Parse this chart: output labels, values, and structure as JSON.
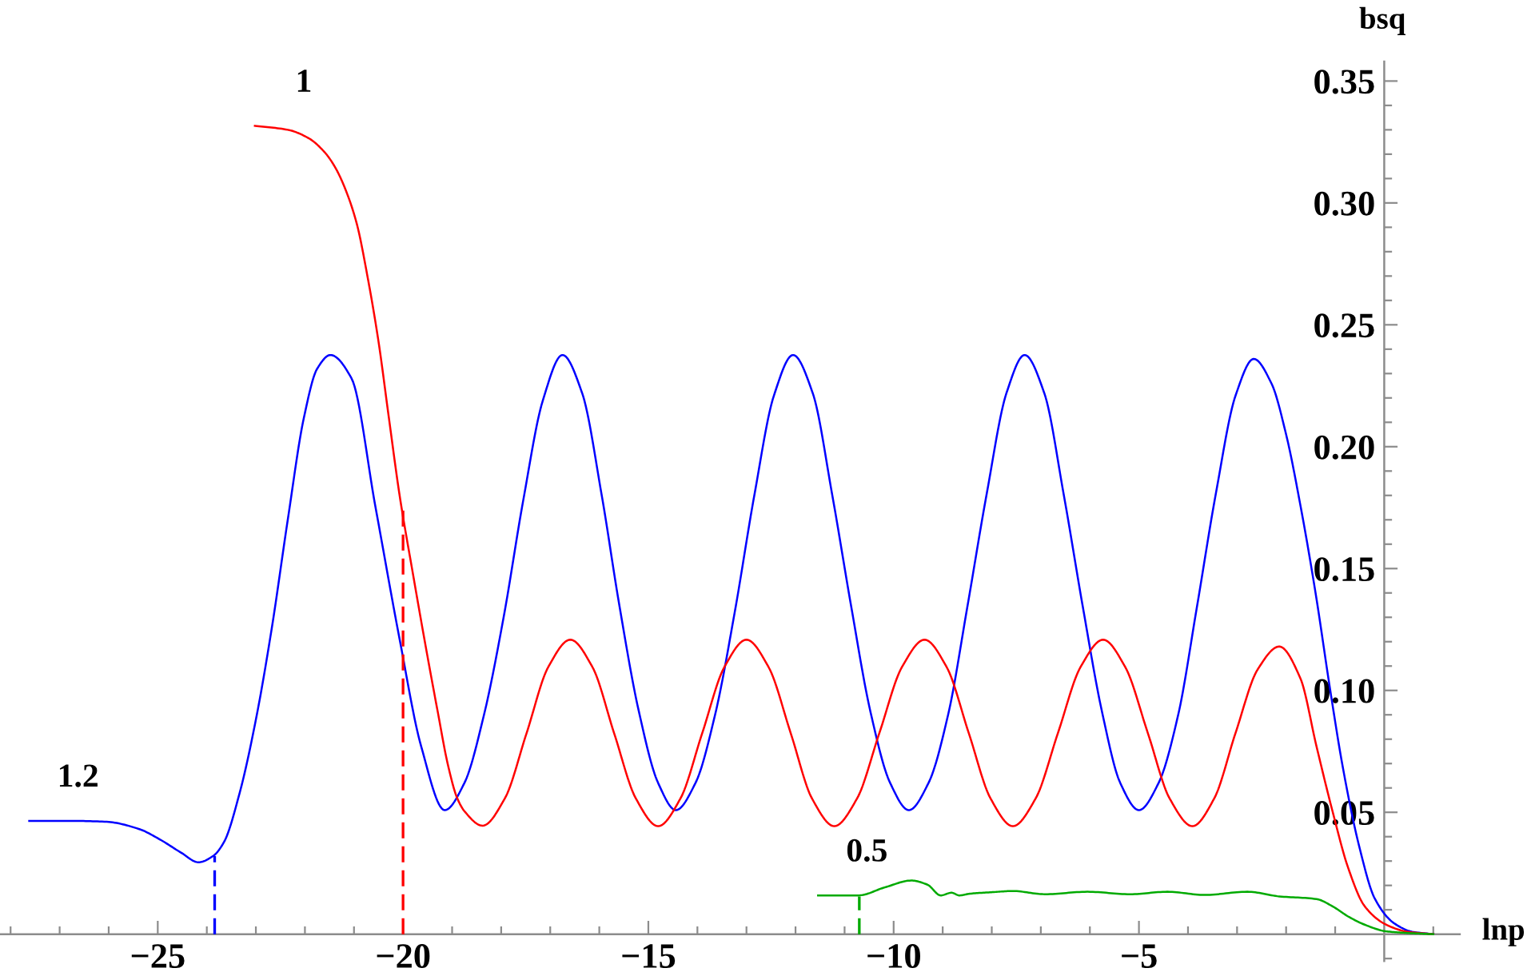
{
  "chart_data": {
    "type": "line",
    "xlabel": "lnp",
    "ylabel": "bsq",
    "xlim": [
      -28.2,
      1.54
    ],
    "ylim": [
      -0.011,
      0.358
    ],
    "xticks": [
      {
        "value": -28,
        "label": null
      },
      {
        "value": -27,
        "label": null
      },
      {
        "value": -26,
        "label": null
      },
      {
        "value": -25,
        "label": "−25"
      },
      {
        "value": -24,
        "label": null
      },
      {
        "value": -23,
        "label": null
      },
      {
        "value": -22,
        "label": null
      },
      {
        "value": -21,
        "label": null
      },
      {
        "value": -20,
        "label": "−20"
      },
      {
        "value": -19,
        "label": null
      },
      {
        "value": -18,
        "label": null
      },
      {
        "value": -17,
        "label": null
      },
      {
        "value": -16,
        "label": null
      },
      {
        "value": -15,
        "label": "−15"
      },
      {
        "value": -14,
        "label": null
      },
      {
        "value": -13,
        "label": null
      },
      {
        "value": -12,
        "label": null
      },
      {
        "value": -11,
        "label": null
      },
      {
        "value": -10,
        "label": "−10"
      },
      {
        "value": -9,
        "label": null
      },
      {
        "value": -8,
        "label": null
      },
      {
        "value": -7,
        "label": null
      },
      {
        "value": -6,
        "label": null
      },
      {
        "value": -5,
        "label": "−5"
      },
      {
        "value": -4,
        "label": null
      },
      {
        "value": -3,
        "label": null
      },
      {
        "value": -2,
        "label": null
      },
      {
        "value": -1,
        "label": null
      },
      {
        "value": 1,
        "label": null
      }
    ],
    "yticks": [
      {
        "value": -0.01,
        "label": null
      },
      {
        "value": 0.01,
        "label": null
      },
      {
        "value": 0.02,
        "label": null
      },
      {
        "value": 0.03,
        "label": null
      },
      {
        "value": 0.04,
        "label": null
      },
      {
        "value": 0.05,
        "label": "0.05"
      },
      {
        "value": 0.06,
        "label": null
      },
      {
        "value": 0.07,
        "label": null
      },
      {
        "value": 0.08,
        "label": null
      },
      {
        "value": 0.09,
        "label": null
      },
      {
        "value": 0.1,
        "label": "0.10"
      },
      {
        "value": 0.11,
        "label": null
      },
      {
        "value": 0.12,
        "label": null
      },
      {
        "value": 0.13,
        "label": null
      },
      {
        "value": 0.14,
        "label": null
      },
      {
        "value": 0.15,
        "label": "0.15"
      },
      {
        "value": 0.16,
        "label": null
      },
      {
        "value": 0.17,
        "label": null
      },
      {
        "value": 0.18,
        "label": null
      },
      {
        "value": 0.19,
        "label": null
      },
      {
        "value": 0.2,
        "label": "0.20"
      },
      {
        "value": 0.21,
        "label": null
      },
      {
        "value": 0.22,
        "label": null
      },
      {
        "value": 0.23,
        "label": null
      },
      {
        "value": 0.24,
        "label": null
      },
      {
        "value": 0.25,
        "label": "0.25"
      },
      {
        "value": 0.26,
        "label": null
      },
      {
        "value": 0.27,
        "label": null
      },
      {
        "value": 0.28,
        "label": null
      },
      {
        "value": 0.29,
        "label": null
      },
      {
        "value": 0.3,
        "label": "0.30"
      },
      {
        "value": 0.31,
        "label": null
      },
      {
        "value": 0.32,
        "label": null
      },
      {
        "value": 0.33,
        "label": null
      },
      {
        "value": 0.34,
        "label": null
      },
      {
        "value": 0.35,
        "label": "0.35"
      }
    ],
    "series": [
      {
        "name": "1.2",
        "color": "#0000ff",
        "x": [
          -27.62,
          -26.8,
          -26.04,
          -25.39,
          -24.96,
          -24.52,
          -24.17,
          -23.87,
          -23.65,
          -23.33,
          -23.0,
          -22.68,
          -22.35,
          -22.02,
          -21.75,
          -21.48,
          -21.05,
          -20.56,
          -20.07,
          -19.63,
          -19.15,
          -18.75,
          -18.35,
          -17.95,
          -17.55,
          -17.15,
          -16.75,
          -16.35,
          -15.95,
          -15.6,
          -15.2,
          -14.8,
          -14.44,
          -14.04,
          -13.64,
          -13.24,
          -12.84,
          -12.44,
          -12.05,
          -11.65,
          -11.25,
          -10.87,
          -10.47,
          -10.07,
          -9.69,
          -9.29,
          -8.89,
          -8.5,
          -8.1,
          -7.7,
          -7.33,
          -6.93,
          -6.53,
          -6.15,
          -5.75,
          -5.38,
          -5.0,
          -4.6,
          -4.2,
          -3.82,
          -3.43,
          -3.03,
          -2.66,
          -2.3,
          -2.0,
          -1.7,
          -1.4,
          -1.1,
          -0.84,
          -0.51,
          -0.19,
          0.2,
          0.57,
          1.0
        ],
        "values": [
          0.0465,
          0.0465,
          0.0461,
          0.0432,
          0.0389,
          0.0334,
          0.0295,
          0.0321,
          0.0378,
          0.058,
          0.088,
          0.125,
          0.17,
          0.212,
          0.232,
          0.2376,
          0.228,
          0.175,
          0.121,
          0.077,
          0.0509,
          0.062,
          0.09,
          0.13,
          0.178,
          0.219,
          0.2376,
          0.222,
          0.18,
          0.136,
          0.092,
          0.062,
          0.0509,
          0.062,
          0.09,
          0.132,
          0.18,
          0.221,
          0.2376,
          0.222,
          0.18,
          0.135,
          0.091,
          0.062,
          0.0509,
          0.062,
          0.09,
          0.134,
          0.181,
          0.222,
          0.2376,
          0.222,
          0.18,
          0.135,
          0.091,
          0.062,
          0.0509,
          0.062,
          0.09,
          0.134,
          0.181,
          0.221,
          0.236,
          0.226,
          0.205,
          0.175,
          0.14,
          0.1,
          0.068,
          0.036,
          0.0145,
          0.0045,
          0.001,
          0.0
        ]
      },
      {
        "name": "1",
        "color": "#ff0000",
        "x": [
          -23.02,
          -22.35,
          -21.92,
          -21.59,
          -21.37,
          -21.15,
          -20.94,
          -20.72,
          -20.5,
          -20.29,
          -20.07,
          -19.8,
          -19.52,
          -19.3,
          -19.08,
          -18.9,
          -18.75,
          -18.38,
          -17.93,
          -17.48,
          -17.04,
          -16.59,
          -16.14,
          -15.7,
          -15.25,
          -14.8,
          -14.35,
          -13.9,
          -13.45,
          -13.0,
          -12.55,
          -12.1,
          -11.66,
          -11.21,
          -10.75,
          -10.29,
          -9.83,
          -9.37,
          -8.92,
          -8.47,
          -8.02,
          -7.57,
          -7.11,
          -6.65,
          -6.19,
          -5.73,
          -5.28,
          -4.82,
          -4.37,
          -3.91,
          -3.47,
          -3.03,
          -2.58,
          -2.14,
          -1.71,
          -1.38,
          -1.06,
          -0.73,
          -0.4,
          0.03,
          0.47,
          1.0
        ],
        "values": [
          0.3316,
          0.33,
          0.3265,
          0.3206,
          0.3141,
          0.3043,
          0.2912,
          0.2693,
          0.2431,
          0.212,
          0.18,
          0.148,
          0.116,
          0.092,
          0.069,
          0.056,
          0.0505,
          0.0445,
          0.0555,
          0.0826,
          0.1096,
          0.1208,
          0.1096,
          0.0826,
          0.0555,
          0.0443,
          0.0555,
          0.0826,
          0.1096,
          0.1208,
          0.1096,
          0.0826,
          0.0555,
          0.0443,
          0.0555,
          0.0826,
          0.1096,
          0.1208,
          0.1096,
          0.0826,
          0.0555,
          0.0443,
          0.0555,
          0.0826,
          0.1096,
          0.1208,
          0.1096,
          0.0826,
          0.0555,
          0.0443,
          0.0555,
          0.0826,
          0.1086,
          0.118,
          0.105,
          0.077,
          0.0509,
          0.0269,
          0.0115,
          0.004,
          0.001,
          0.0
        ]
      },
      {
        "name": "0.5",
        "color": "#00aa00",
        "x": [
          -11.54,
          -10.72,
          -10.18,
          -9.64,
          -9.31,
          -9.04,
          -8.82,
          -8.66,
          -8.45,
          -8.01,
          -7.57,
          -6.92,
          -6.05,
          -5.18,
          -4.42,
          -3.66,
          -2.79,
          -2.14,
          -1.38,
          -1.06,
          -0.73,
          -0.4,
          0.03,
          0.47,
          1.0
        ],
        "values": [
          0.0159,
          0.0159,
          0.0192,
          0.022,
          0.0203,
          0.0159,
          0.017,
          0.0159,
          0.0166,
          0.0172,
          0.0177,
          0.0164,
          0.0174,
          0.0164,
          0.0174,
          0.0161,
          0.0174,
          0.0155,
          0.0144,
          0.0115,
          0.0072,
          0.0039,
          0.0012,
          0.0005,
          0.0
        ]
      },
      {
        "type": "line",
        "color": "#0000ff",
        "line_style": "dashed",
        "x": [
          -23.84,
          -23.84
        ],
        "values": [
          0,
          0.032
        ]
      },
      {
        "type": "line",
        "color": "#ff0000",
        "line_style": "dashed",
        "x": [
          -20.0,
          -20.0
        ],
        "values": [
          0,
          0.176
        ]
      },
      {
        "type": "line",
        "color": "#00aa00",
        "line_style": "dashed",
        "x": [
          -10.7,
          -10.7
        ],
        "values": [
          0,
          0.0155
        ]
      }
    ]
  }
}
